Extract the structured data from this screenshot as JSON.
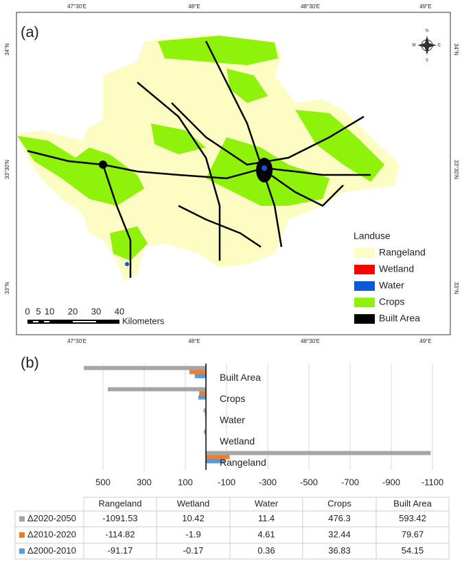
{
  "map": {
    "panel_label": "(a)",
    "lon_labels": [
      "47°30'E",
      "48°E",
      "48°30'E",
      "49°E"
    ],
    "lat_labels": [
      "34°N",
      "33°30'N",
      "33°N"
    ],
    "compass": [
      "N",
      "S",
      "E",
      "W"
    ],
    "legend": {
      "title": "Landuse",
      "items": [
        {
          "label": "Rangeland",
          "color": "#fdfcc3"
        },
        {
          "label": "Wetland",
          "color": "#ff0000"
        },
        {
          "label": "Water",
          "color": "#0a5ad8"
        },
        {
          "label": "Crops",
          "color": "#8ef20a"
        },
        {
          "label": "Built Area",
          "color": "#000000"
        }
      ]
    },
    "scale_bar": {
      "labels": [
        "0",
        "5",
        "10",
        "20",
        "30",
        "40"
      ],
      "unit": "Kilometers"
    }
  },
  "chart_data": {
    "type": "barh",
    "panel_label": "(b)",
    "categories": [
      "Rangeland",
      "Wetland",
      "Water",
      "Crops",
      "Built Area"
    ],
    "series": [
      {
        "name": "Δ2020-2050",
        "color": "#a5a5a5",
        "values": [
          -1091.53,
          10.42,
          11.4,
          476.3,
          593.42
        ]
      },
      {
        "name": "Δ2010-2020",
        "color": "#ed7d31",
        "values": [
          -114.82,
          -1.9,
          4.61,
          32.44,
          79.67
        ]
      },
      {
        "name": "Δ2000-2010",
        "color": "#5b9bd5",
        "values": [
          -91.17,
          -0.17,
          0.36,
          36.83,
          54.15
        ]
      }
    ],
    "xlim": [
      600,
      -1100
    ],
    "xticks": [
      500,
      300,
      100,
      -100,
      -300,
      -500,
      -700,
      -900,
      -1100
    ],
    "grid": true
  }
}
